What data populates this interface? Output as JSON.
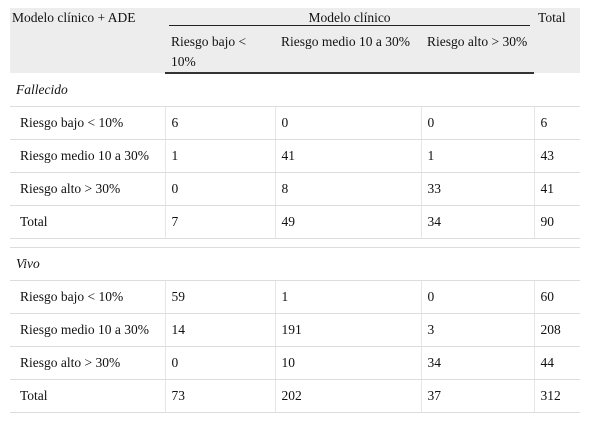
{
  "table": {
    "header": {
      "corner": "Modelo clínico + ADE",
      "span": "Modelo clínico",
      "total": "Total",
      "sub": [
        "Riesgo bajo < 10%",
        "Riesgo medio 10 a 30%",
        "Riesgo alto > 30%"
      ]
    },
    "groups": [
      {
        "name": "Fallecido",
        "rows": [
          {
            "label": "Riesgo bajo < 10%",
            "c1": "6",
            "c2": "0",
            "c3": "0",
            "total": "6"
          },
          {
            "label": "Riesgo medio 10 a 30%",
            "c1": "1",
            "c2": "41",
            "c3": "1",
            "total": "43"
          },
          {
            "label": "Riesgo alto > 30%",
            "c1": "0",
            "c2": "8",
            "c3": "33",
            "total": "41"
          },
          {
            "label": "Total",
            "c1": "7",
            "c2": "49",
            "c3": "34",
            "total": "90"
          }
        ]
      },
      {
        "name": "Vivo",
        "rows": [
          {
            "label": "Riesgo bajo < 10%",
            "c1": "59",
            "c2": "1",
            "c3": "0",
            "total": "60"
          },
          {
            "label": "Riesgo medio 10 a 30%",
            "c1": "14",
            "c2": "191",
            "c3": "3",
            "total": "208"
          },
          {
            "label": "Riesgo alto > 30%",
            "c1": "0",
            "c2": "10",
            "c3": "34",
            "total": "44"
          },
          {
            "label": "Total",
            "c1": "73",
            "c2": "202",
            "c3": "37",
            "total": "312"
          }
        ]
      }
    ]
  }
}
